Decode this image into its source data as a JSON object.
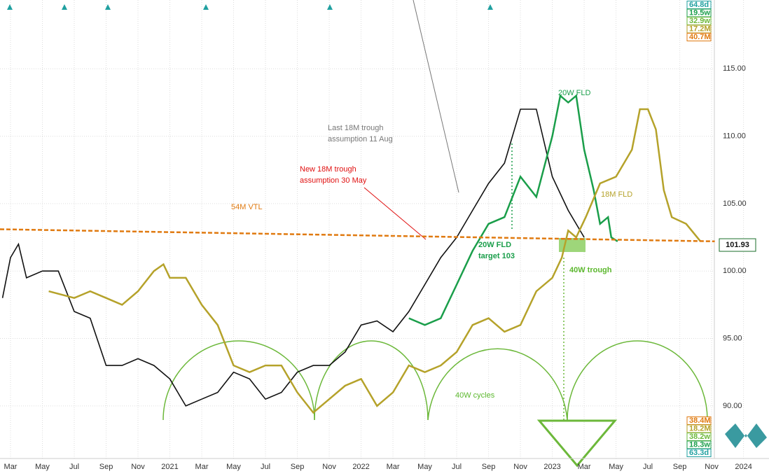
{
  "chart_data": {
    "type": "line",
    "xlim": [
      1.34,
      49.6
    ],
    "ylim": [
      86.1,
      120.1
    ],
    "xticks": [
      {
        "value": 2,
        "label": "Mar"
      },
      {
        "value": 4,
        "label": "May"
      },
      {
        "value": 6,
        "label": "Jul"
      },
      {
        "value": 8,
        "label": "Sep"
      },
      {
        "value": 10,
        "label": "Nov"
      },
      {
        "value": 12,
        "label": "2021"
      },
      {
        "value": 14,
        "label": "Mar"
      },
      {
        "value": 16,
        "label": "May"
      },
      {
        "value": 18,
        "label": "Jul"
      },
      {
        "value": 20,
        "label": "Sep"
      },
      {
        "value": 22,
        "label": "Nov"
      },
      {
        "value": 24,
        "label": "2022"
      },
      {
        "value": 26,
        "label": "Mar"
      },
      {
        "value": 28,
        "label": "May"
      },
      {
        "value": 30,
        "label": "Jul"
      },
      {
        "value": 32,
        "label": "Sep"
      },
      {
        "value": 34,
        "label": "Nov"
      },
      {
        "value": 36,
        "label": "2023"
      },
      {
        "value": 38,
        "label": "Mar"
      },
      {
        "value": 40,
        "label": "May"
      },
      {
        "value": 42,
        "label": "Jul"
      },
      {
        "value": 44,
        "label": "Sep"
      },
      {
        "value": 46,
        "label": "Nov"
      },
      {
        "value": 48,
        "label": "2024"
      }
    ],
    "yticks": [
      {
        "value": 90,
        "label": "90.00"
      },
      {
        "value": 95,
        "label": "95.00"
      },
      {
        "value": 100,
        "label": "100.00"
      },
      {
        "value": 105,
        "label": "105.00"
      },
      {
        "value": 110,
        "label": "110.00"
      },
      {
        "value": 115,
        "label": "115.00"
      }
    ],
    "grid": true,
    "last_price": 101.93,
    "series": [
      {
        "color": "#111111",
        "width": 1.6,
        "x": [
          1.5,
          2,
          2.5,
          3,
          4,
          5,
          6,
          7,
          8,
          9,
          10,
          11,
          12,
          13,
          14,
          15,
          16,
          17,
          18,
          19,
          20,
          21,
          22,
          23,
          24,
          25,
          26,
          27,
          28,
          29,
          30,
          31,
          32,
          33,
          34,
          35,
          36,
          37,
          38
        ],
        "values": [
          98,
          101,
          102,
          99.5,
          100,
          100,
          97,
          96.5,
          93,
          93,
          93.5,
          93,
          92,
          90,
          90.5,
          91,
          92.5,
          92,
          90.5,
          91,
          92.5,
          93,
          93,
          94,
          96,
          96.3,
          95.5,
          97,
          99,
          101,
          102.5,
          104.5,
          106.5,
          108,
          112,
          112,
          107,
          104.5,
          102.5
        ]
      },
      {
        "color": "#1a9e4a",
        "width": 2.5,
        "x": [
          27,
          28,
          29,
          30,
          31,
          32,
          33,
          34,
          35,
          36,
          36.5,
          37,
          37.5,
          38,
          38.6,
          39,
          39.5,
          39.7,
          40.1
        ],
        "values": [
          96.5,
          96,
          96.5,
          99,
          101.5,
          103.5,
          104,
          107,
          105.5,
          110,
          113,
          112.5,
          113,
          109,
          106,
          103.5,
          104,
          102.5,
          102.2
        ]
      },
      {
        "color": "#b5a22a",
        "width": 2.5,
        "x": [
          4.4,
          6,
          7,
          8,
          9,
          10,
          11,
          11.6,
          12,
          13,
          14,
          15,
          16,
          17,
          18,
          19,
          20,
          21,
          22,
          23,
          24,
          25,
          26,
          27,
          28,
          29,
          30,
          31,
          32,
          33,
          34,
          35,
          36,
          36.6,
          37,
          37.5,
          38.1,
          39,
          40,
          41,
          41.5,
          42,
          42.5,
          43,
          43.5,
          44.4,
          45.3
        ],
        "values": [
          98.5,
          98,
          98.5,
          98,
          97.5,
          98.5,
          100,
          100.5,
          99.5,
          99.5,
          97.5,
          96,
          93,
          92.5,
          93,
          93,
          91,
          89.5,
          90.5,
          91.5,
          92,
          90,
          91,
          93,
          92.5,
          93,
          94,
          96,
          96.5,
          95.5,
          96,
          98.5,
          99.5,
          101,
          103,
          102.5,
          104,
          106.5,
          107,
          109,
          112,
          112,
          110.5,
          106,
          104,
          103.5,
          102.2
        ]
      },
      {
        "color": "#e07a10",
        "width": 2.5,
        "dashed": true,
        "x": [
          1.34,
          46.2
        ],
        "values": [
          103.1,
          102.2
        ]
      }
    ],
    "annotations": [
      {
        "text": [
          "54M VTL"
        ],
        "color": "#e07a10"
      },
      {
        "text": [
          "Last 18M trough",
          "assumption 11 Aug"
        ],
        "color": "#777777"
      },
      {
        "text": [
          "New 18M trough",
          "assumption 30 May"
        ],
        "color": "#e01010"
      },
      {
        "text": [
          "20W FLD"
        ],
        "color": "#1a9e4a"
      },
      {
        "text": [
          "18M FLD"
        ],
        "color": "#b5a22a"
      },
      {
        "text": [
          "20W FLD",
          "target 103"
        ],
        "color": "#1a9e4a"
      },
      {
        "text": [
          "40W trough"
        ],
        "color": "#5cb82e"
      },
      {
        "text": [
          "40W cycles"
        ],
        "color": "#5cb82e"
      }
    ],
    "cycle_labels_top": [
      "64.8d",
      "19.5w",
      "32.9w",
      "17.2M",
      "40.7M"
    ],
    "cycle_labels_bottom": [
      "38.4M",
      "18.2M",
      "38.2w",
      "18.3w",
      "63.3d"
    ]
  }
}
